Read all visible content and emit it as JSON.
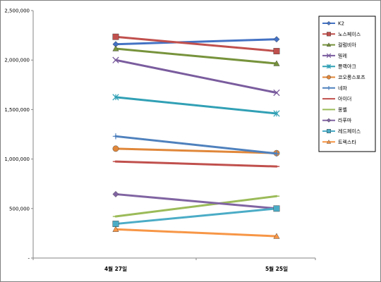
{
  "chart_data": {
    "type": "line",
    "title": "",
    "xlabel": "",
    "ylabel": "",
    "categories": [
      "4월 27일",
      "5월 25일"
    ],
    "ylim": [
      0,
      2500000
    ],
    "yticks": [
      0,
      500000,
      1000000,
      1500000,
      2000000,
      2500000
    ],
    "ytick_labels": [
      "-",
      "500,000",
      "1,000,000",
      "1,500,000",
      "2,000,000",
      "2,500,000"
    ],
    "grid": false,
    "legend": "right",
    "series": [
      {
        "name": "K2",
        "values": [
          2160000,
          2210000
        ],
        "color": "#4472c4",
        "marker": "diamond"
      },
      {
        "name": "노스페이스",
        "values": [
          2235000,
          2090000
        ],
        "color": "#c0504d",
        "marker": "square"
      },
      {
        "name": "컬럼비아",
        "values": [
          2115000,
          1965000
        ],
        "color": "#77933c",
        "marker": "triangle"
      },
      {
        "name": "밀레",
        "values": [
          2000000,
          1670000
        ],
        "color": "#7a5c9e",
        "marker": "x"
      },
      {
        "name": "블랙야크",
        "values": [
          1625000,
          1460000
        ],
        "color": "#31a0b5",
        "marker": "star"
      },
      {
        "name": "코오롱스포츠",
        "values": [
          1105000,
          1060000
        ],
        "color": "#e0873a",
        "marker": "circle"
      },
      {
        "name": "네파",
        "values": [
          1230000,
          1055000
        ],
        "color": "#4f81bd",
        "marker": "plus"
      },
      {
        "name": "아이더",
        "values": [
          975000,
          925000
        ],
        "color": "#c0504d",
        "marker": "dash"
      },
      {
        "name": "몽벨",
        "values": [
          420000,
          625000
        ],
        "color": "#9bbb59",
        "marker": "dash"
      },
      {
        "name": "라푸마",
        "values": [
          645000,
          500000
        ],
        "color": "#8064a2",
        "marker": "diamond"
      },
      {
        "name": "레드페이스",
        "values": [
          345000,
          500000
        ],
        "color": "#4bacc6",
        "marker": "square"
      },
      {
        "name": "트렉스타",
        "values": [
          290000,
          220000
        ],
        "color": "#f79646",
        "marker": "triangle"
      }
    ]
  }
}
